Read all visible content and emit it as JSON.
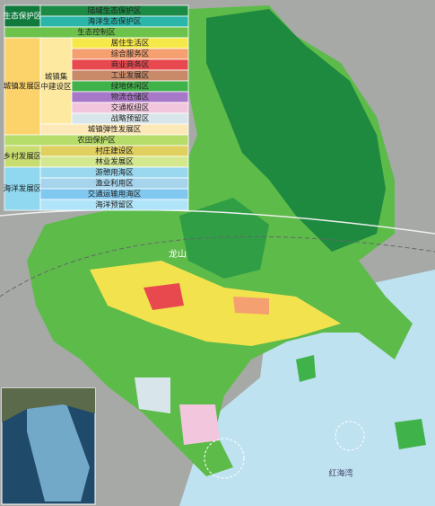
{
  "legend": {
    "entries": [
      {
        "label": "生态保护区",
        "color": "#0f7a3c",
        "text": "#ffffff",
        "items": [
          {
            "label": "陆域生态保护区",
            "color": "#1a8a45"
          },
          {
            "label": "海洋生态保护区",
            "color": "#2ab7a9"
          }
        ]
      },
      {
        "label": "生态控制区",
        "color": "#6cc24a"
      },
      {
        "label": "城镇发展区",
        "color": "#fcd36b",
        "items": [
          {
            "label": "城镇集中建设区",
            "color": "#fde9a0",
            "items": [
              {
                "label": "居住生活区",
                "color": "#f5e94a"
              },
              {
                "label": "综合服务区",
                "color": "#f4a070"
              },
              {
                "label": "商业商务区",
                "color": "#e8494f"
              },
              {
                "label": "工业发展区",
                "color": "#c98a6a"
              },
              {
                "label": "绿地休闲区",
                "color": "#3fb24a"
              },
              {
                "label": "物流仓储区",
                "color": "#a878c8"
              },
              {
                "label": "交通枢纽区",
                "color": "#f2c6dc"
              },
              {
                "label": "战略预留区",
                "color": "#d8e6ec"
              }
            ]
          },
          {
            "label": "城镇弹性发展区",
            "color": "#fde9b8"
          }
        ]
      },
      {
        "label": "农田保护区",
        "color": "#b6dc6a"
      },
      {
        "label": "乡村发展区",
        "color": "#c8dc70",
        "items": [
          {
            "label": "村庄建设区",
            "color": "#e0d060"
          },
          {
            "label": "林业发展区",
            "color": "#d4e890"
          }
        ]
      },
      {
        "label": "海洋发展区",
        "color": "#8fd8f0",
        "items": [
          {
            "label": "游憩用海区",
            "color": "#9ad8f0"
          },
          {
            "label": "渔业利用区",
            "color": "#a6d4ec"
          },
          {
            "label": "交通运输用海区",
            "color": "#80c8f0"
          },
          {
            "label": "海洋预留区",
            "color": "#b0e4f8"
          }
        ]
      }
    ]
  },
  "map": {
    "labels": [
      "龙山",
      "红海湾"
    ]
  }
}
